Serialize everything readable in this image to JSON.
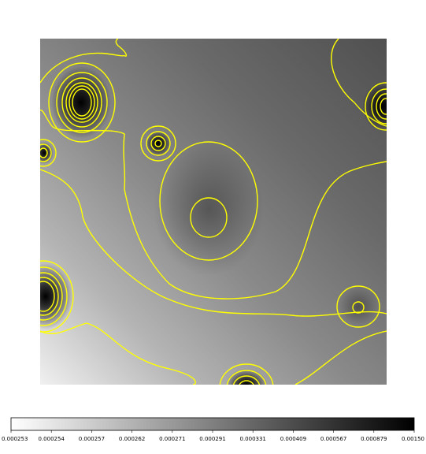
{
  "chart_data": {
    "type": "heatmap",
    "colormap": "grayscale (white = low, black = high)",
    "contour_color": "#ffff00",
    "title": "",
    "xlabel": "",
    "ylabel": "",
    "colorbar": {
      "orientation": "horizontal",
      "placement": "bottom",
      "ticks": [
        "0.000253",
        "0.000254",
        "0.000257",
        "0.000262",
        "0.000271",
        "0.000291",
        "0.000331",
        "0.000409",
        "0.000567",
        "0.000879",
        "0.00150"
      ]
    }
  }
}
